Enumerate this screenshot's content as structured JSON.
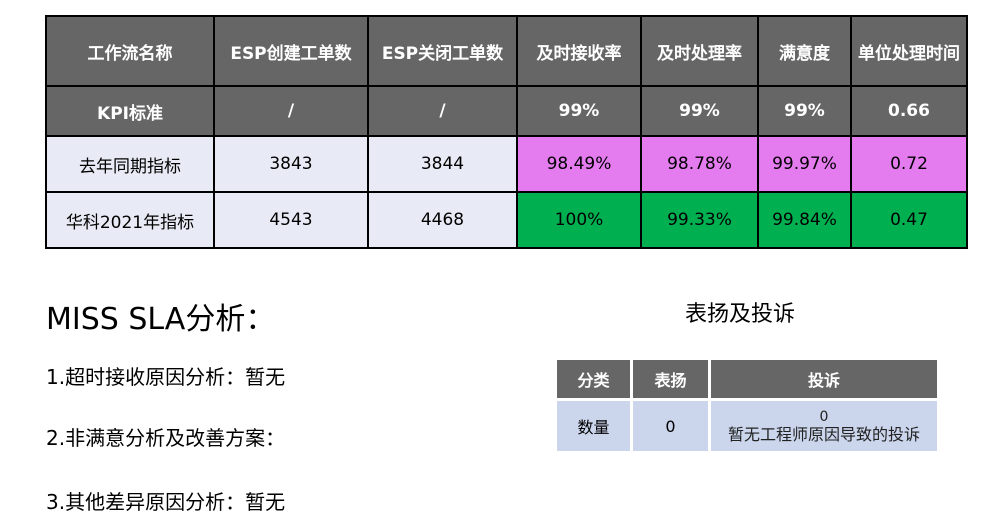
{
  "kpi_table": {
    "headers": [
      "工作流名称",
      "ESP创建工单数",
      "ESP关闭工单数",
      "及时接收率",
      "及时处理率",
      "满意度",
      "单位处理时间"
    ],
    "rows": [
      [
        "KPI标准",
        "/",
        "/",
        "99%",
        "99%",
        "99%",
        "0.66"
      ],
      [
        "去年同期指标",
        "3843",
        "3844",
        "98.49%",
        "98.78%",
        "99.97%",
        "0.72"
      ],
      [
        "华科2021年指标",
        "4543",
        "4468",
        "100%",
        "99.33%",
        "99.84%",
        "0.47"
      ]
    ],
    "colors": {
      "header": "#666666",
      "label": "#e8ebf5",
      "last_year": "#e47cf0",
      "this_year": "#00b050"
    }
  },
  "miss_sla": {
    "title": "MISS  SLA分析：",
    "items": [
      "1.超时接收原因分析：暂无",
      "2.非满意分析及改善方案：",
      "3.其他差异原因分析：暂无"
    ]
  },
  "praise": {
    "title": "表扬及投诉",
    "headers": [
      "分类",
      "表扬",
      "投诉"
    ],
    "row": {
      "label": "数量",
      "praise": "0",
      "complaint_count": "0",
      "complaint_note": "暂无工程师原因导致的投诉"
    }
  }
}
